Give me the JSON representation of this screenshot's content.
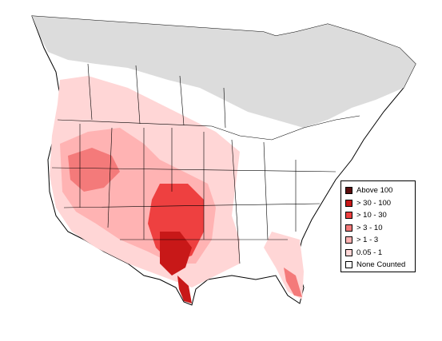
{
  "colors": {
    "background": "#ffffff",
    "uncounted_region": "#dcdcdc",
    "border_line": "#000000",
    "density_ramp": [
      "#ffd6d6",
      "#ffb3b3",
      "#f47a7a",
      "#ee4040",
      "#c81818",
      "#5a0e0e"
    ]
  },
  "legend": {
    "items": [
      {
        "label": "Above 100",
        "color": "#5a0e0e"
      },
      {
        "label": "> 30 - 100",
        "color": "#c81818"
      },
      {
        "label": "> 10 - 30",
        "color": "#ee4040"
      },
      {
        "label": "> 3 - 10",
        "color": "#f47a7a"
      },
      {
        "label": "> 1 - 3",
        "color": "#ffb3b3"
      },
      {
        "label": "0.05 - 1",
        "color": "#ffd6d6"
      },
      {
        "label": "None Counted",
        "color": "#ffffff"
      }
    ]
  }
}
